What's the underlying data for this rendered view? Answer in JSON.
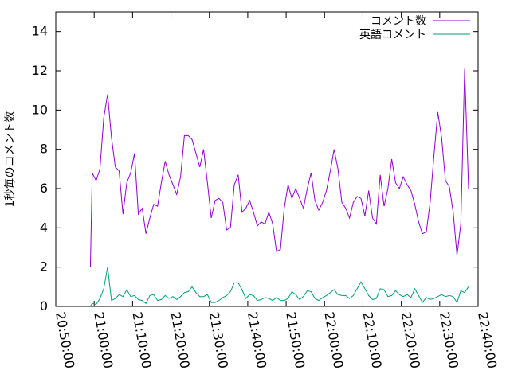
{
  "chart_data": {
    "type": "line",
    "title": "",
    "xlabel": "",
    "ylabel": "1秒毎のコメント数",
    "xlim": [
      "20:50:00",
      "22:40:00"
    ],
    "ylim": [
      0,
      15
    ],
    "x_tick_labels": [
      "20:50:00",
      "21:00:00",
      "21:10:00",
      "21:20:00",
      "21:30:00",
      "21:40:00",
      "21:50:00",
      "22:00:00",
      "22:10:00",
      "22:20:00",
      "22:30:00",
      "22:40:00"
    ],
    "y_tick_labels": [
      "0",
      "2",
      "4",
      "6",
      "8",
      "10",
      "12",
      "14"
    ],
    "grid": false,
    "legend_position": "top-right",
    "series": [
      {
        "name": "コメント数",
        "color": "#9400d3",
        "points": [
          [
            "20:59:00",
            2.0
          ],
          [
            "20:59:30",
            6.8
          ],
          [
            "21:00:30",
            6.4
          ],
          [
            "21:01:30",
            7.0
          ],
          [
            "21:02:30",
            9.6
          ],
          [
            "21:03:30",
            10.8
          ],
          [
            "21:04:30",
            8.6
          ],
          [
            "21:05:30",
            7.1
          ],
          [
            "21:06:30",
            6.9
          ],
          [
            "21:07:30",
            4.7
          ],
          [
            "21:08:30",
            6.3
          ],
          [
            "21:09:30",
            6.8
          ],
          [
            "21:10:30",
            7.8
          ],
          [
            "21:11:30",
            4.7
          ],
          [
            "21:12:30",
            5.0
          ],
          [
            "21:13:30",
            3.7
          ],
          [
            "21:14:30",
            4.5
          ],
          [
            "21:15:30",
            5.2
          ],
          [
            "21:16:30",
            5.1
          ],
          [
            "21:17:30",
            6.3
          ],
          [
            "21:18:30",
            7.4
          ],
          [
            "21:19:30",
            6.7
          ],
          [
            "21:20:30",
            6.2
          ],
          [
            "21:21:30",
            5.7
          ],
          [
            "21:22:30",
            6.6
          ],
          [
            "21:23:30",
            8.7
          ],
          [
            "21:24:30",
            8.7
          ],
          [
            "21:25:30",
            8.5
          ],
          [
            "21:26:30",
            7.8
          ],
          [
            "21:27:30",
            7.1
          ],
          [
            "21:28:30",
            8.0
          ],
          [
            "21:29:30",
            6.3
          ],
          [
            "21:30:30",
            4.5
          ],
          [
            "21:31:30",
            5.4
          ],
          [
            "21:32:30",
            5.5
          ],
          [
            "21:33:30",
            5.3
          ],
          [
            "21:34:30",
            3.9
          ],
          [
            "21:35:30",
            4.0
          ],
          [
            "21:36:30",
            6.2
          ],
          [
            "21:37:30",
            6.7
          ],
          [
            "21:38:30",
            4.8
          ],
          [
            "21:39:30",
            5.0
          ],
          [
            "21:40:30",
            5.4
          ],
          [
            "21:41:30",
            4.8
          ],
          [
            "21:42:30",
            4.1
          ],
          [
            "21:43:30",
            4.3
          ],
          [
            "21:44:30",
            4.2
          ],
          [
            "21:45:30",
            4.8
          ],
          [
            "21:46:30",
            4.2
          ],
          [
            "21:47:30",
            2.8
          ],
          [
            "21:48:30",
            2.9
          ],
          [
            "21:49:30",
            5.0
          ],
          [
            "21:50:30",
            6.2
          ],
          [
            "21:51:30",
            5.5
          ],
          [
            "21:52:30",
            6.0
          ],
          [
            "21:53:30",
            5.5
          ],
          [
            "21:54:30",
            5.0
          ],
          [
            "21:55:30",
            6.0
          ],
          [
            "21:56:30",
            6.8
          ],
          [
            "21:57:30",
            5.4
          ],
          [
            "21:58:30",
            4.9
          ],
          [
            "21:59:30",
            5.3
          ],
          [
            "22:00:30",
            5.9
          ],
          [
            "22:01:30",
            6.9
          ],
          [
            "22:02:30",
            8.0
          ],
          [
            "22:03:30",
            7.0
          ],
          [
            "22:04:30",
            5.3
          ],
          [
            "22:05:30",
            5.0
          ],
          [
            "22:06:30",
            4.5
          ],
          [
            "22:07:30",
            5.3
          ],
          [
            "22:08:30",
            5.6
          ],
          [
            "22:09:30",
            5.5
          ],
          [
            "22:10:30",
            4.6
          ],
          [
            "22:11:30",
            5.9
          ],
          [
            "22:12:30",
            4.5
          ],
          [
            "22:13:30",
            4.2
          ],
          [
            "22:14:30",
            6.7
          ],
          [
            "22:15:30",
            5.1
          ],
          [
            "22:16:30",
            6.0
          ],
          [
            "22:17:30",
            7.5
          ],
          [
            "22:18:30",
            6.3
          ],
          [
            "22:19:30",
            6.0
          ],
          [
            "22:20:30",
            6.6
          ],
          [
            "22:21:30",
            6.2
          ],
          [
            "22:22:30",
            5.9
          ],
          [
            "22:23:30",
            5.2
          ],
          [
            "22:24:30",
            4.3
          ],
          [
            "22:25:30",
            3.7
          ],
          [
            "22:26:30",
            3.8
          ],
          [
            "22:27:30",
            5.3
          ],
          [
            "22:28:30",
            7.7
          ],
          [
            "22:29:30",
            9.9
          ],
          [
            "22:30:30",
            8.6
          ],
          [
            "22:31:30",
            6.4
          ],
          [
            "22:32:30",
            6.1
          ],
          [
            "22:33:30",
            4.8
          ],
          [
            "22:34:30",
            2.6
          ],
          [
            "22:35:30",
            4.2
          ],
          [
            "22:36:30",
            12.1
          ],
          [
            "22:37:30",
            6.0
          ]
        ]
      },
      {
        "name": "英語コメント",
        "color": "#009e73",
        "points": [
          [
            "20:59:00",
            0.0
          ],
          [
            "20:59:30",
            0.15
          ],
          [
            "21:00:30",
            0.1
          ],
          [
            "21:01:30",
            0.4
          ],
          [
            "21:02:30",
            0.9
          ],
          [
            "21:03:30",
            2.0
          ],
          [
            "21:04:30",
            0.3
          ],
          [
            "21:05:30",
            0.4
          ],
          [
            "21:06:30",
            0.6
          ],
          [
            "21:07:30",
            0.5
          ],
          [
            "21:08:30",
            0.85
          ],
          [
            "21:09:30",
            0.5
          ],
          [
            "21:10:30",
            0.55
          ],
          [
            "21:11:30",
            0.35
          ],
          [
            "21:12:30",
            0.3
          ],
          [
            "21:13:30",
            0.15
          ],
          [
            "21:14:30",
            0.55
          ],
          [
            "21:15:30",
            0.6
          ],
          [
            "21:16:30",
            0.3
          ],
          [
            "21:17:30",
            0.35
          ],
          [
            "21:18:30",
            0.55
          ],
          [
            "21:19:30",
            0.4
          ],
          [
            "21:20:30",
            0.5
          ],
          [
            "21:21:30",
            0.35
          ],
          [
            "21:22:30",
            0.5
          ],
          [
            "21:23:30",
            0.7
          ],
          [
            "21:24:30",
            0.75
          ],
          [
            "21:25:30",
            1.0
          ],
          [
            "21:26:30",
            0.7
          ],
          [
            "21:27:30",
            0.5
          ],
          [
            "21:28:30",
            0.5
          ],
          [
            "21:29:30",
            0.6
          ],
          [
            "21:30:30",
            0.2
          ],
          [
            "21:31:30",
            0.2
          ],
          [
            "21:32:30",
            0.3
          ],
          [
            "21:33:30",
            0.45
          ],
          [
            "21:34:30",
            0.55
          ],
          [
            "21:35:30",
            0.75
          ],
          [
            "21:36:30",
            1.2
          ],
          [
            "21:37:30",
            1.2
          ],
          [
            "21:38:30",
            0.85
          ],
          [
            "21:39:30",
            0.4
          ],
          [
            "21:40:30",
            0.6
          ],
          [
            "21:41:30",
            0.55
          ],
          [
            "21:42:30",
            0.3
          ],
          [
            "21:43:30",
            0.35
          ],
          [
            "21:44:30",
            0.45
          ],
          [
            "21:45:30",
            0.4
          ],
          [
            "21:46:30",
            0.3
          ],
          [
            "21:47:30",
            0.45
          ],
          [
            "21:48:30",
            0.3
          ],
          [
            "21:49:30",
            0.3
          ],
          [
            "21:50:30",
            0.4
          ],
          [
            "21:51:30",
            0.75
          ],
          [
            "21:52:30",
            0.6
          ],
          [
            "21:53:30",
            0.35
          ],
          [
            "21:54:30",
            0.5
          ],
          [
            "21:55:30",
            0.8
          ],
          [
            "21:56:30",
            0.75
          ],
          [
            "21:57:30",
            0.4
          ],
          [
            "21:58:30",
            0.3
          ],
          [
            "21:59:30",
            0.45
          ],
          [
            "22:00:30",
            0.55
          ],
          [
            "22:01:30",
            0.7
          ],
          [
            "22:02:30",
            0.85
          ],
          [
            "22:03:30",
            0.6
          ],
          [
            "22:04:30",
            0.55
          ],
          [
            "22:05:30",
            0.55
          ],
          [
            "22:06:30",
            0.4
          ],
          [
            "22:07:30",
            0.55
          ],
          [
            "22:08:30",
            0.9
          ],
          [
            "22:09:30",
            1.25
          ],
          [
            "22:10:30",
            0.9
          ],
          [
            "22:11:30",
            0.55
          ],
          [
            "22:12:30",
            0.35
          ],
          [
            "22:13:30",
            0.4
          ],
          [
            "22:14:30",
            0.9
          ],
          [
            "22:15:30",
            0.85
          ],
          [
            "22:16:30",
            0.5
          ],
          [
            "22:17:30",
            0.55
          ],
          [
            "22:18:30",
            0.8
          ],
          [
            "22:19:30",
            0.6
          ],
          [
            "22:20:30",
            0.5
          ],
          [
            "22:21:30",
            0.6
          ],
          [
            "22:22:30",
            0.45
          ],
          [
            "22:23:30",
            0.9
          ],
          [
            "22:24:30",
            0.55
          ],
          [
            "22:25:30",
            0.2
          ],
          [
            "22:26:30",
            0.45
          ],
          [
            "22:27:30",
            0.35
          ],
          [
            "22:28:30",
            0.4
          ],
          [
            "22:29:30",
            0.5
          ],
          [
            "22:30:30",
            0.6
          ],
          [
            "22:31:30",
            0.5
          ],
          [
            "22:32:30",
            0.55
          ],
          [
            "22:33:30",
            0.5
          ],
          [
            "22:34:30",
            0.2
          ],
          [
            "22:35:30",
            0.8
          ],
          [
            "22:36:30",
            0.7
          ],
          [
            "22:37:30",
            1.0
          ]
        ]
      }
    ]
  }
}
